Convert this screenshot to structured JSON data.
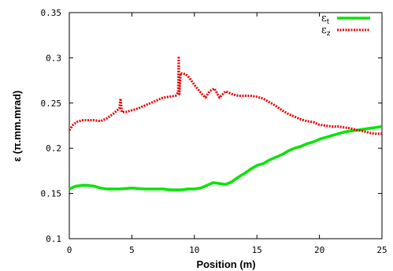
{
  "chart_data": {
    "type": "line",
    "xlabel": "Position (m)",
    "ylabel": "ε (π.mm.mrad)",
    "xlim": [
      0,
      25
    ],
    "ylim": [
      0.1,
      0.35
    ],
    "x_ticks": [
      0,
      5,
      10,
      15,
      20,
      25
    ],
    "y_ticks": [
      0.1,
      0.15,
      0.2,
      0.25,
      0.3,
      0.35
    ],
    "x_tick_labels": [
      "0",
      "5",
      "10",
      "15",
      "20",
      "25"
    ],
    "y_tick_labels": [
      "0.1",
      "0.15",
      "0.2",
      "0.25",
      "0.3",
      "0.35"
    ],
    "grid": false,
    "legend_position": "top-right",
    "series": [
      {
        "name": "εt",
        "legend_main": "ε",
        "legend_sub": "t",
        "color": "#00e600",
        "style": "solid",
        "points": [
          [
            0,
            0.155
          ],
          [
            0.5,
            0.158
          ],
          [
            1.0,
            0.159
          ],
          [
            1.5,
            0.159
          ],
          [
            2.0,
            0.158
          ],
          [
            2.5,
            0.156
          ],
          [
            3.0,
            0.155
          ],
          [
            3.5,
            0.155
          ],
          [
            4.0,
            0.155
          ],
          [
            5.0,
            0.156
          ],
          [
            6.0,
            0.155
          ],
          [
            7.0,
            0.155
          ],
          [
            7.5,
            0.155
          ],
          [
            8.0,
            0.154
          ],
          [
            8.5,
            0.154
          ],
          [
            9.0,
            0.154
          ],
          [
            9.5,
            0.155
          ],
          [
            10.0,
            0.155
          ],
          [
            10.5,
            0.156
          ],
          [
            11.0,
            0.159
          ],
          [
            11.5,
            0.162
          ],
          [
            12.0,
            0.161
          ],
          [
            12.5,
            0.16
          ],
          [
            13.0,
            0.163
          ],
          [
            13.5,
            0.168
          ],
          [
            14.0,
            0.172
          ],
          [
            14.5,
            0.177
          ],
          [
            15.0,
            0.181
          ],
          [
            15.5,
            0.183
          ],
          [
            16.0,
            0.187
          ],
          [
            16.5,
            0.19
          ],
          [
            17.0,
            0.193
          ],
          [
            17.5,
            0.197
          ],
          [
            18.0,
            0.2
          ],
          [
            18.5,
            0.202
          ],
          [
            19.0,
            0.205
          ],
          [
            19.5,
            0.207
          ],
          [
            20.0,
            0.21
          ],
          [
            20.5,
            0.212
          ],
          [
            21.0,
            0.214
          ],
          [
            21.5,
            0.216
          ],
          [
            22.0,
            0.218
          ],
          [
            22.5,
            0.219
          ],
          [
            23.0,
            0.22
          ],
          [
            23.5,
            0.221
          ],
          [
            24.0,
            0.222
          ],
          [
            24.5,
            0.223
          ],
          [
            25.0,
            0.224
          ]
        ]
      },
      {
        "name": "εz",
        "legend_main": "ε",
        "legend_sub": "z",
        "color": "#e60000",
        "style": "dotted",
        "points": [
          [
            0,
            0.22
          ],
          [
            0.3,
            0.226
          ],
          [
            0.6,
            0.229
          ],
          [
            1.0,
            0.231
          ],
          [
            1.5,
            0.231
          ],
          [
            2.0,
            0.231
          ],
          [
            2.5,
            0.23
          ],
          [
            3.0,
            0.233
          ],
          [
            3.5,
            0.238
          ],
          [
            4.0,
            0.244
          ],
          [
            4.1,
            0.255
          ],
          [
            4.2,
            0.24
          ],
          [
            4.5,
            0.24
          ],
          [
            5.0,
            0.242
          ],
          [
            5.5,
            0.244
          ],
          [
            6.0,
            0.247
          ],
          [
            6.5,
            0.25
          ],
          [
            7.0,
            0.253
          ],
          [
            7.5,
            0.256
          ],
          [
            8.0,
            0.257
          ],
          [
            8.5,
            0.258
          ],
          [
            8.7,
            0.262
          ],
          [
            8.75,
            0.3
          ],
          [
            8.8,
            0.26
          ],
          [
            8.9,
            0.283
          ],
          [
            9.3,
            0.282
          ],
          [
            9.6,
            0.278
          ],
          [
            10.0,
            0.27
          ],
          [
            10.3,
            0.265
          ],
          [
            10.6,
            0.26
          ],
          [
            10.9,
            0.256
          ],
          [
            11.2,
            0.263
          ],
          [
            11.6,
            0.266
          ],
          [
            12.0,
            0.256
          ],
          [
            12.5,
            0.263
          ],
          [
            13.0,
            0.26
          ],
          [
            13.5,
            0.258
          ],
          [
            14.0,
            0.258
          ],
          [
            14.5,
            0.258
          ],
          [
            15.0,
            0.257
          ],
          [
            15.5,
            0.255
          ],
          [
            16.0,
            0.251
          ],
          [
            16.5,
            0.247
          ],
          [
            17.0,
            0.242
          ],
          [
            17.5,
            0.238
          ],
          [
            18.0,
            0.235
          ],
          [
            18.5,
            0.232
          ],
          [
            19.0,
            0.23
          ],
          [
            19.5,
            0.229
          ],
          [
            20.0,
            0.226
          ],
          [
            20.5,
            0.225
          ],
          [
            21.0,
            0.224
          ],
          [
            21.5,
            0.224
          ],
          [
            22.0,
            0.223
          ],
          [
            22.5,
            0.222
          ],
          [
            23.0,
            0.22
          ],
          [
            23.5,
            0.219
          ],
          [
            24.0,
            0.217
          ],
          [
            24.5,
            0.216
          ],
          [
            25.0,
            0.216
          ]
        ]
      }
    ]
  }
}
